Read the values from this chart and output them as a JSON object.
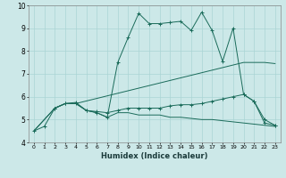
{
  "xlabel": "Humidex (Indice chaleur)",
  "xlim": [
    -0.5,
    23.5
  ],
  "ylim": [
    4,
    10
  ],
  "yticks": [
    4,
    5,
    6,
    7,
    8,
    9,
    10
  ],
  "xticks": [
    0,
    1,
    2,
    3,
    4,
    5,
    6,
    7,
    8,
    9,
    10,
    11,
    12,
    13,
    14,
    15,
    16,
    17,
    18,
    19,
    20,
    21,
    22,
    23
  ],
  "bg_color": "#cce8e8",
  "grid_color": "#aad4d4",
  "line_color": "#1a6b5a",
  "series": [
    {
      "x": [
        0,
        1,
        2,
        3,
        4,
        5,
        6,
        7,
        8,
        9,
        10,
        11,
        12,
        13,
        14,
        15,
        16,
        17,
        18,
        19,
        20,
        21,
        22,
        23
      ],
      "y": [
        4.5,
        4.7,
        5.5,
        5.7,
        5.75,
        5.4,
        5.3,
        5.1,
        7.5,
        8.6,
        9.65,
        9.2,
        9.2,
        9.25,
        9.3,
        8.9,
        9.7,
        8.9,
        7.55,
        9.0,
        6.1,
        5.8,
        4.85,
        4.75
      ],
      "marker": true
    },
    {
      "x": [
        0,
        2,
        3,
        4,
        5,
        6,
        7,
        8,
        9,
        10,
        11,
        12,
        13,
        14,
        15,
        16,
        17,
        18,
        19,
        20,
        21,
        22,
        23
      ],
      "y": [
        4.5,
        5.5,
        5.7,
        5.7,
        5.4,
        5.3,
        5.1,
        5.3,
        5.3,
        5.2,
        5.2,
        5.2,
        5.1,
        5.1,
        5.05,
        5.0,
        5.0,
        4.95,
        4.9,
        4.85,
        4.8,
        4.75,
        4.7
      ],
      "marker": false
    },
    {
      "x": [
        0,
        2,
        3,
        4,
        20,
        22,
        23
      ],
      "y": [
        4.5,
        5.5,
        5.7,
        5.7,
        7.5,
        7.5,
        7.45
      ],
      "marker": false
    },
    {
      "x": [
        2,
        3,
        4,
        5,
        6,
        7,
        8,
        9,
        10,
        11,
        12,
        13,
        14,
        15,
        16,
        17,
        18,
        19,
        20,
        21,
        22,
        23
      ],
      "y": [
        5.5,
        5.7,
        5.7,
        5.4,
        5.35,
        5.3,
        5.4,
        5.5,
        5.5,
        5.5,
        5.5,
        5.6,
        5.65,
        5.65,
        5.7,
        5.8,
        5.9,
        6.0,
        6.1,
        5.8,
        5.0,
        4.75
      ],
      "marker": true
    }
  ]
}
